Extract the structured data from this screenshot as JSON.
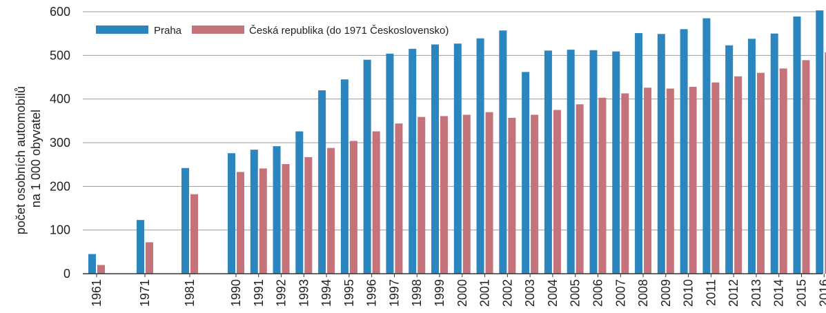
{
  "chart_data": {
    "type": "bar",
    "ylabel_line1": "počet osobních automobilů",
    "ylabel_line2": "na 1 000 obyvatel",
    "ylim": [
      0,
      600
    ],
    "yticks": [
      0,
      100,
      200,
      300,
      400,
      500,
      600
    ],
    "grid": true,
    "legend_placement": "top-left",
    "categories": [
      "1961",
      "1971",
      "1981",
      "1990",
      "1991",
      "1992",
      "1993",
      "1994",
      "1995",
      "1996",
      "1997",
      "1998",
      "1999",
      "2000",
      "2001",
      "2002",
      "2003",
      "2004",
      "2005",
      "2006",
      "2007",
      "2008",
      "2009",
      "2010",
      "2011",
      "2012",
      "2013",
      "2014",
      "2015",
      "2016"
    ],
    "series": [
      {
        "name": "Praha",
        "color": "#2b86bf",
        "values": [
          45,
          123,
          242,
          276,
          284,
          292,
          326,
          420,
          445,
          490,
          504,
          515,
          525,
          527,
          539,
          557,
          462,
          511,
          513,
          512,
          509,
          551,
          549,
          560,
          585,
          523,
          538,
          550,
          589,
          603
        ]
      },
      {
        "name": "Česká republika (do 1971 Československo)",
        "color": "#c4737b",
        "values": [
          20,
          72,
          182,
          233,
          241,
          251,
          267,
          288,
          304,
          326,
          344,
          359,
          361,
          364,
          370,
          357,
          364,
          375,
          388,
          403,
          413,
          426,
          424,
          428,
          438,
          452,
          460,
          470,
          489,
          507
        ]
      }
    ]
  }
}
